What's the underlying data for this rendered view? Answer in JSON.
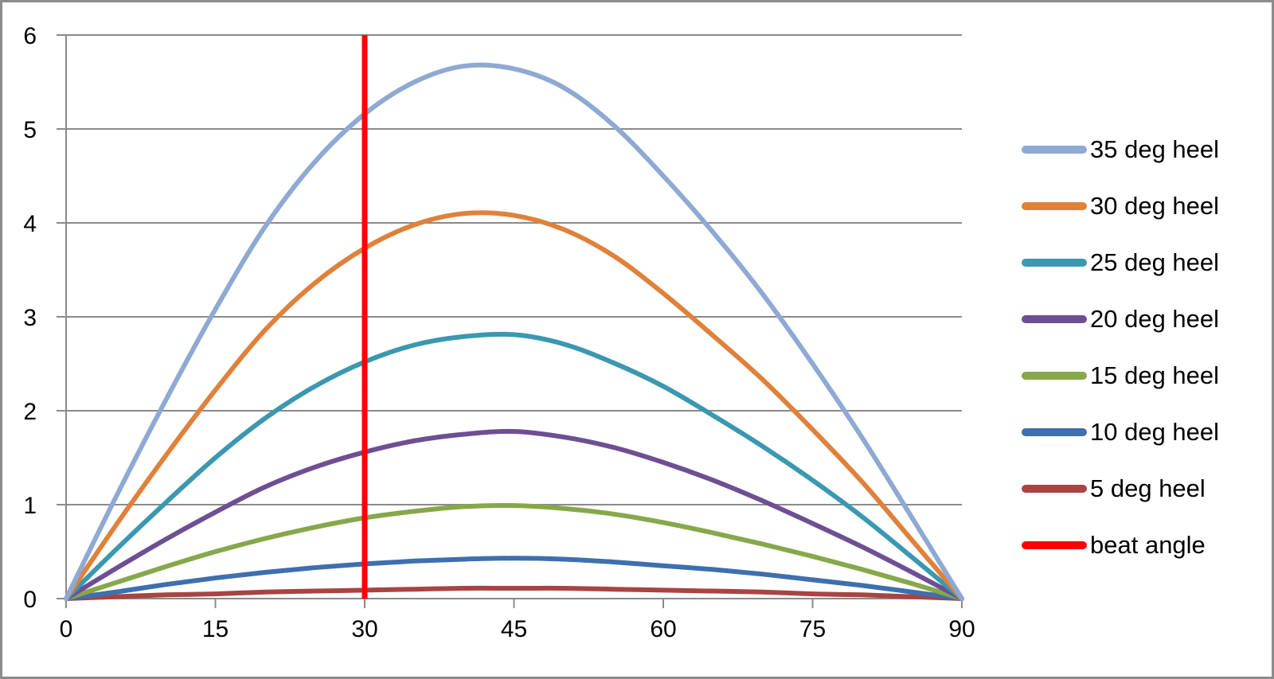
{
  "chart_data": {
    "type": "line",
    "title": "",
    "xlabel": "",
    "ylabel": "",
    "xlim": [
      0,
      90
    ],
    "ylim": [
      0,
      6
    ],
    "grid": true,
    "legend_position": "right",
    "x_ticks": [
      "0",
      "15",
      "30",
      "45",
      "60",
      "75",
      "90"
    ],
    "y_ticks": [
      "0",
      "1",
      "2",
      "3",
      "4",
      "5",
      "6"
    ],
    "x": [
      0,
      5,
      10,
      15,
      20,
      25,
      30,
      35,
      40,
      45,
      50,
      55,
      60,
      65,
      70,
      75,
      80,
      85,
      90
    ],
    "series": [
      {
        "name": "35 deg heel",
        "color": "#8EA9D3",
        "values": [
          0,
          1.08,
          2.11,
          3.08,
          3.96,
          4.65,
          5.16,
          5.5,
          5.67,
          5.64,
          5.44,
          5.04,
          4.5,
          3.9,
          3.24,
          2.5,
          1.71,
          0.86,
          0
        ]
      },
      {
        "name": "30 deg heel",
        "color": "#E0813A",
        "values": [
          0,
          0.78,
          1.52,
          2.22,
          2.86,
          3.36,
          3.73,
          3.98,
          4.1,
          4.08,
          3.93,
          3.65,
          3.25,
          2.8,
          2.33,
          1.8,
          1.24,
          0.62,
          0
        ]
      },
      {
        "name": "25 deg heel",
        "color": "#3A98B0",
        "values": [
          0,
          0.52,
          1.02,
          1.5,
          1.92,
          2.26,
          2.52,
          2.7,
          2.79,
          2.81,
          2.71,
          2.51,
          2.26,
          1.95,
          1.62,
          1.26,
          0.87,
          0.44,
          0
        ]
      },
      {
        "name": "20 deg heel",
        "color": "#6E4F93",
        "values": [
          0,
          0.32,
          0.63,
          0.92,
          1.19,
          1.4,
          1.56,
          1.68,
          1.75,
          1.78,
          1.72,
          1.61,
          1.45,
          1.26,
          1.04,
          0.8,
          0.55,
          0.28,
          0
        ]
      },
      {
        "name": "15 deg heel",
        "color": "#86A84A",
        "values": [
          0,
          0.17,
          0.34,
          0.5,
          0.64,
          0.76,
          0.86,
          0.93,
          0.98,
          0.99,
          0.96,
          0.9,
          0.81,
          0.7,
          0.58,
          0.45,
          0.31,
          0.16,
          0
        ]
      },
      {
        "name": "10 deg heel",
        "color": "#3E6FAE",
        "values": [
          0,
          0.07,
          0.15,
          0.22,
          0.28,
          0.33,
          0.37,
          0.4,
          0.42,
          0.43,
          0.42,
          0.39,
          0.35,
          0.31,
          0.26,
          0.2,
          0.14,
          0.07,
          0
        ]
      },
      {
        "name": "5 deg heel",
        "color": "#A84442",
        "values": [
          0,
          0.02,
          0.04,
          0.05,
          0.07,
          0.08,
          0.09,
          0.1,
          0.11,
          0.11,
          0.11,
          0.1,
          0.09,
          0.08,
          0.07,
          0.05,
          0.04,
          0.02,
          0
        ]
      },
      {
        "name": "beat angle",
        "color": "#FF0000",
        "type": "vertical_line",
        "x_value": 30,
        "values": [
          [
            30,
            0
          ],
          [
            30,
            6
          ]
        ]
      }
    ]
  },
  "legend": {
    "items": [
      {
        "label": "35 deg heel",
        "color": "#8EA9D3"
      },
      {
        "label": "30 deg heel",
        "color": "#E0813A"
      },
      {
        "label": "25 deg heel",
        "color": "#3A98B0"
      },
      {
        "label": "20 deg heel",
        "color": "#6E4F93"
      },
      {
        "label": "15 deg heel",
        "color": "#86A84A"
      },
      {
        "label": "10 deg heel",
        "color": "#3E6FAE"
      },
      {
        "label": "5 deg heel",
        "color": "#A84442"
      },
      {
        "label": "beat angle",
        "color": "#FF0000"
      }
    ]
  },
  "style": {
    "grid_color": "#8a8a8a",
    "axis_color": "#8a8a8a",
    "border_color": "#8c8c8c"
  }
}
